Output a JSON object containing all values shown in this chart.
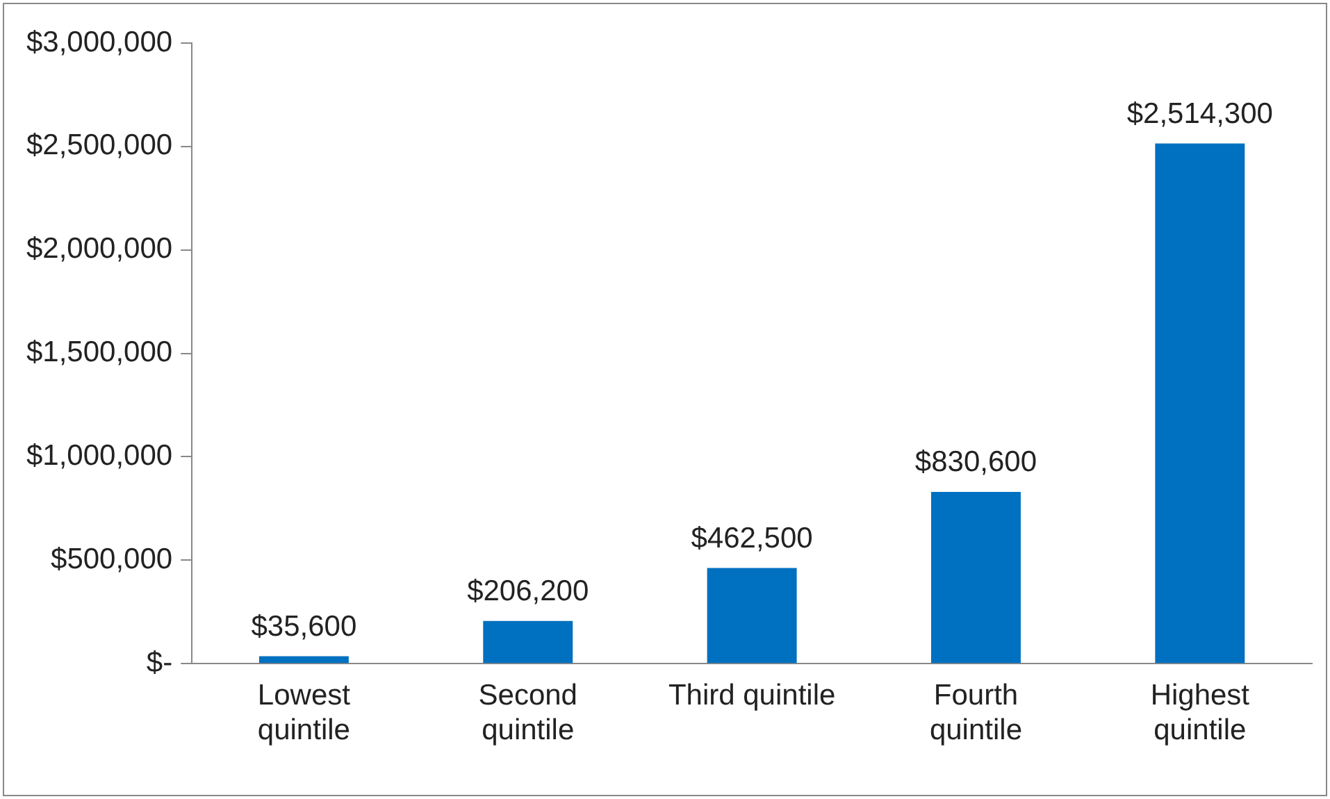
{
  "chart_data": {
    "type": "bar",
    "categories": [
      "Lowest quintile",
      "Second quintile",
      "Third quintile",
      "Fourth quintile",
      "Highest quintile"
    ],
    "values": [
      35600,
      206200,
      462500,
      830600,
      2514300
    ],
    "value_labels": [
      "$35,600",
      "$206,200",
      "$462,500",
      "$830,600",
      "$2,514,300"
    ],
    "color": "#0070c0",
    "ylim": [
      0,
      3000000
    ],
    "yticks": [
      {
        "value": 0,
        "label": "$-"
      },
      {
        "value": 500000,
        "label": "$500,000"
      },
      {
        "value": 1000000,
        "label": "$1,000,000"
      },
      {
        "value": 1500000,
        "label": "$1,500,000"
      },
      {
        "value": 2000000,
        "label": "$2,000,000"
      },
      {
        "value": 2500000,
        "label": "$2,500,000"
      },
      {
        "value": 3000000,
        "label": "$3,000,000"
      }
    ],
    "grid": false,
    "legend": false
  }
}
